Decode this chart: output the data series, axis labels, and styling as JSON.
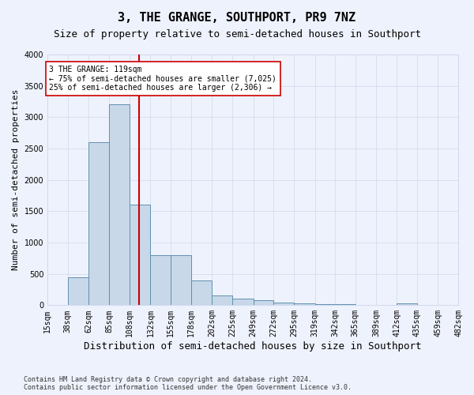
{
  "title": "3, THE GRANGE, SOUTHPORT, PR9 7NZ",
  "subtitle": "Size of property relative to semi-detached houses in Southport",
  "xlabel": "Distribution of semi-detached houses by size in Southport",
  "ylabel": "Number of semi-detached properties",
  "footer_line1": "Contains HM Land Registry data © Crown copyright and database right 2024.",
  "footer_line2": "Contains public sector information licensed under the Open Government Licence v3.0.",
  "property_size": 119,
  "property_label": "3 THE GRANGE: 119sqm",
  "annotation_line1": "← 75% of semi-detached houses are smaller (7,025)",
  "annotation_line2": "25% of semi-detached houses are larger (2,306) →",
  "bar_color": "#c8d8e8",
  "bar_edge_color": "#6090b0",
  "vline_color": "#cc0000",
  "annotation_box_color": "#ffffff",
  "annotation_box_edge": "#cc0000",
  "bins": [
    15,
    38,
    62,
    85,
    108,
    132,
    155,
    178,
    202,
    225,
    249,
    272,
    295,
    319,
    342,
    365,
    389,
    412,
    435,
    459,
    482
  ],
  "bin_labels": [
    "15sqm",
    "38sqm",
    "62sqm",
    "85sqm",
    "108sqm",
    "132sqm",
    "155sqm",
    "178sqm",
    "202sqm",
    "225sqm",
    "249sqm",
    "272sqm",
    "295sqm",
    "319sqm",
    "342sqm",
    "365sqm",
    "389sqm",
    "412sqm",
    "435sqm",
    "459sqm",
    "482sqm"
  ],
  "counts": [
    5,
    450,
    2600,
    3200,
    1600,
    800,
    800,
    400,
    150,
    100,
    80,
    40,
    30,
    20,
    15,
    10,
    5,
    30,
    5,
    5
  ],
  "ylim": [
    0,
    4000
  ],
  "yticks": [
    0,
    500,
    1000,
    1500,
    2000,
    2500,
    3000,
    3500,
    4000
  ],
  "background_color": "#eef2fc",
  "grid_color": "#d0d8ee",
  "title_fontsize": 11,
  "subtitle_fontsize": 9,
  "axis_fontsize": 8,
  "tick_fontsize": 7
}
